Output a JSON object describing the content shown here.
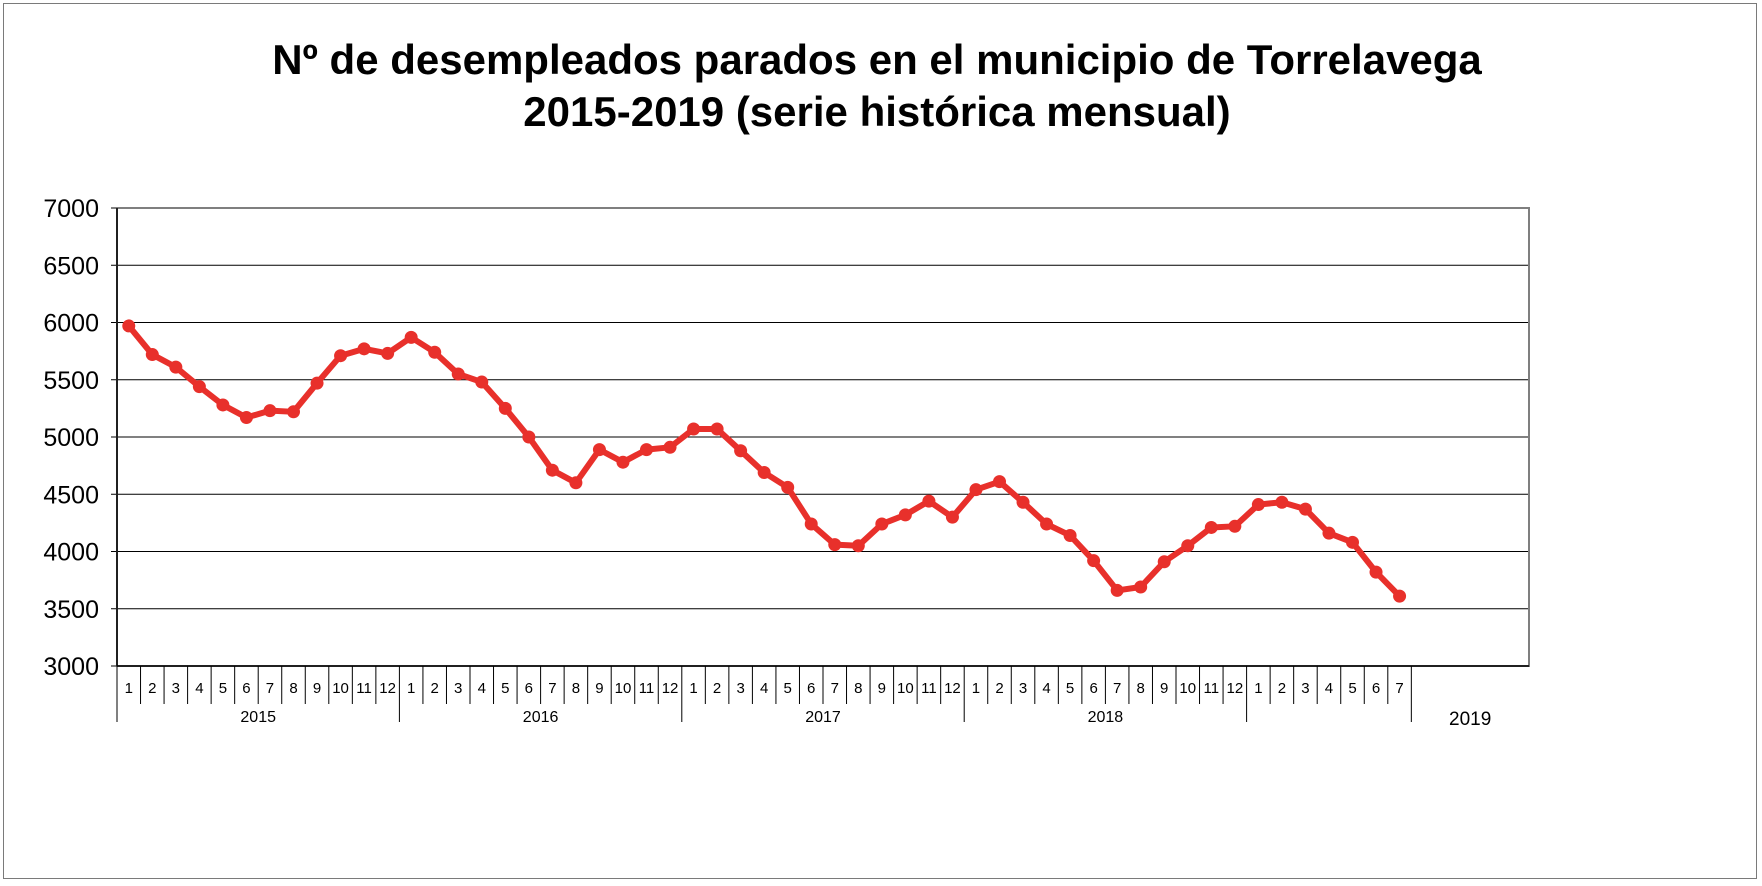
{
  "chart_data": {
    "type": "line",
    "title_line1": "Nº de desempleados parados en el municipio de Torrelavega",
    "title_line2": "2015-2019 (serie histórica mensual)",
    "xlabel": "",
    "ylabel": "",
    "ylim": [
      3000,
      7000
    ],
    "ytick_step": 500,
    "grid": true,
    "legend": "none",
    "line_color": "#e8302b",
    "years": [
      {
        "label": "2015",
        "months": [
          "1",
          "2",
          "3",
          "4",
          "5",
          "6",
          "7",
          "8",
          "9",
          "10",
          "11",
          "12"
        ]
      },
      {
        "label": "2016",
        "months": [
          "1",
          "2",
          "3",
          "4",
          "5",
          "6",
          "7",
          "8",
          "9",
          "10",
          "11",
          "12"
        ]
      },
      {
        "label": "2017",
        "months": [
          "1",
          "2",
          "3",
          "4",
          "5",
          "6",
          "7",
          "8",
          "9",
          "10",
          "11",
          "12"
        ]
      },
      {
        "label": "2018",
        "months": [
          "1",
          "2",
          "3",
          "4",
          "5",
          "6",
          "7",
          "8",
          "9",
          "10",
          "11",
          "12"
        ]
      },
      {
        "label": "2019",
        "months": [
          "1",
          "2",
          "3",
          "4",
          "5",
          "6",
          "7"
        ]
      }
    ],
    "series": [
      {
        "name": "Desempleados",
        "values": [
          5970,
          5720,
          5610,
          5440,
          5280,
          5170,
          5230,
          5220,
          5470,
          5710,
          5770,
          5730,
          5870,
          5740,
          5550,
          5480,
          5250,
          5000,
          4710,
          4600,
          4890,
          4780,
          4890,
          4910,
          5070,
          5070,
          4880,
          4690,
          4560,
          4240,
          4060,
          4050,
          4240,
          4320,
          4440,
          4300,
          4540,
          4610,
          4430,
          4240,
          4140,
          3920,
          3660,
          3690,
          3910,
          4050,
          4210,
          4220,
          4410,
          4430,
          4370,
          4160,
          4080,
          3820,
          3610
        ]
      }
    ]
  }
}
